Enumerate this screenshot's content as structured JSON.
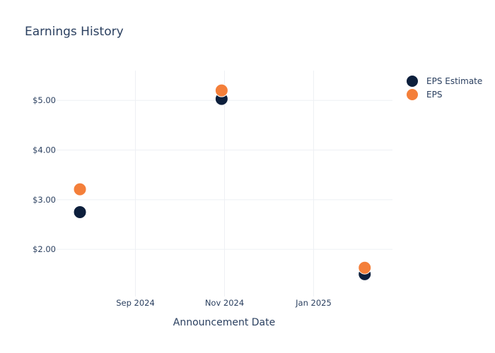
{
  "chart_data": {
    "type": "scatter",
    "title": "Earnings History",
    "xlabel": "Announcement Date",
    "ylabel": "",
    "x_ticks": [
      "Sep 2024",
      "Nov 2024",
      "Jan 2025"
    ],
    "y_ticks": [
      "$2.00",
      "$3.00",
      "$4.00",
      "$5.00"
    ],
    "x": [
      "2024-07-25",
      "2024-10-30",
      "2025-02-05"
    ],
    "series": [
      {
        "name": "EPS Estimate",
        "color": "#0d1f3c",
        "values": [
          2.75,
          5.03,
          1.5
        ]
      },
      {
        "name": "EPS",
        "color": "#f47f3a",
        "values": [
          3.21,
          5.2,
          1.63
        ]
      }
    ],
    "xlim": [
      "2024-07-09",
      "2025-02-24"
    ],
    "ylim": [
      1.05,
      5.6
    ],
    "grid": true,
    "legend_position": "top-right"
  }
}
